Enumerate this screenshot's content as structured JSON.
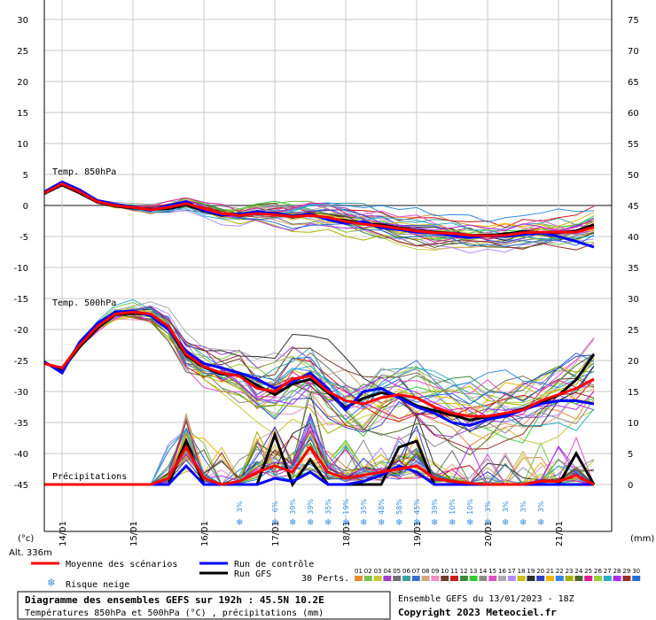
{
  "chart_data": {
    "type": "line",
    "title": "Diagramme des ensembles GEFS sur 192h : 45.5N 10.2E",
    "subtitle": "Températures 850hPa et 500hPa (°C) , précipitations (mm)",
    "left_axis": {
      "label": "(°c)",
      "min": -45,
      "max": 30,
      "ticks": [
        30,
        25,
        20,
        15,
        10,
        5,
        0,
        -5,
        -10,
        -15,
        -20,
        -25,
        -30,
        -35,
        -40,
        -45
      ]
    },
    "right_axis": {
      "label": "(mm)",
      "min": 0,
      "max": 75,
      "ticks": [
        75,
        70,
        65,
        60,
        55,
        50,
        45,
        40,
        35,
        30,
        25,
        20,
        15,
        10,
        5,
        0
      ]
    },
    "x_dates": [
      "14/01",
      "15/01",
      "16/01",
      "17/01",
      "18/01",
      "19/01",
      "20/01",
      "21/01"
    ],
    "x_steps": 32,
    "section_labels": {
      "t850": "Temp. 850hPa",
      "t500": "Temp. 500hPa",
      "precip": "Précipitations"
    },
    "altitude": "Alt. 336m",
    "series": [
      {
        "name": "Moyenne des scénarios",
        "color": "#ff0000",
        "width": 3,
        "t850": [
          2,
          3.5,
          2.2,
          0.6,
          0,
          -0.3,
          -0.7,
          -0.3,
          0.3,
          -0.5,
          -1.3,
          -1.6,
          -1.3,
          -1.5,
          -1.8,
          -1.6,
          -1.9,
          -2.6,
          -3,
          -3.3,
          -3.7,
          -4.1,
          -4.4,
          -4.5,
          -4.8,
          -4.9,
          -4.8,
          -4.4,
          -4.3,
          -4.3,
          -4.3,
          -3.5
        ],
        "t500": [
          -25.5,
          -26.2,
          -22.5,
          -19.5,
          -17.5,
          -17.2,
          -17.5,
          -19.5,
          -24,
          -26,
          -27,
          -27.5,
          -29.5,
          -30,
          -28,
          -27.5,
          -30,
          -31.5,
          -32,
          -31,
          -30.5,
          -31,
          -32.5,
          -33.5,
          -34,
          -34,
          -33.5,
          -33,
          -31.5,
          -30.5,
          -29.5,
          -28
        ],
        "precip": [
          0,
          0,
          0,
          0,
          0,
          0,
          0,
          1,
          6,
          1,
          0,
          0.5,
          2,
          3,
          2,
          6,
          2,
          1,
          1.5,
          2,
          2.5,
          3,
          1,
          0.5,
          0.2,
          0,
          0,
          0,
          0.5,
          0.5,
          1.5,
          0
        ]
      },
      {
        "name": "Run de contrôle",
        "color": "#0000ff",
        "width": 3,
        "t850": [
          2.2,
          3.8,
          2.5,
          0.8,
          0.2,
          -0.2,
          -0.8,
          0,
          0.6,
          -0.8,
          -1.5,
          -1.4,
          -1,
          -1.3,
          -1.7,
          -1.4,
          -2.3,
          -2.9,
          -2.6,
          -3.6,
          -3.9,
          -4.3,
          -4.4,
          -4.9,
          -5.2,
          -4.9,
          -5,
          -4.7,
          -4.4,
          -5,
          -5.8,
          -6.7
        ],
        "t500": [
          -25.2,
          -27,
          -22,
          -19,
          -17.2,
          -17,
          -17.8,
          -20,
          -23.5,
          -25.5,
          -26.2,
          -27,
          -28,
          -29.5,
          -28.5,
          -27,
          -29.5,
          -33,
          -30,
          -29.5,
          -31,
          -32.5,
          -33.5,
          -35,
          -35.5,
          -34.5,
          -34,
          -33,
          -32,
          -31.5,
          -31.5,
          -32
        ],
        "precip": [
          0,
          0,
          0,
          0,
          0,
          0,
          0,
          0,
          3,
          0,
          0,
          0,
          0,
          1,
          0.5,
          2,
          0,
          0,
          0.5,
          1.5,
          3,
          2,
          0,
          0,
          0,
          0,
          0,
          0,
          0,
          0,
          0,
          0
        ]
      },
      {
        "name": "Run GFS",
        "color": "#000000",
        "width": 3,
        "t850": [
          1.9,
          3.3,
          2,
          0.5,
          -0.1,
          -0.4,
          -0.6,
          -0.5,
          0.1,
          -0.9,
          -1.6,
          -1.3,
          -1.4,
          -1.2,
          -1.9,
          -1.5,
          -2.1,
          -2.4,
          -2.9,
          -3.1,
          -3.6,
          -4,
          -4.3,
          -4.5,
          -4.8,
          -4.8,
          -4.6,
          -4.2,
          -4.4,
          -4.4,
          -4.1,
          -3.1
        ],
        "t500": [
          -25.4,
          -26.5,
          -22.8,
          -19.8,
          -17.6,
          -17.4,
          -17.6,
          -19.9,
          -24.2,
          -26.1,
          -27.2,
          -27.4,
          -29,
          -30.5,
          -28.8,
          -28,
          -30.2,
          -32.6,
          -31.1,
          -30.2,
          -30.8,
          -32.3,
          -33.1,
          -33.8,
          -34.6,
          -34.1,
          -33.6,
          -32.8,
          -31.8,
          -30.6,
          -28.1,
          -24
        ],
        "precip": [
          0,
          0,
          0,
          0,
          0,
          0,
          0,
          0,
          7,
          0,
          0,
          0,
          0,
          8,
          0,
          4,
          0,
          0,
          0,
          0,
          6,
          7,
          0,
          0,
          0,
          0,
          0,
          0,
          0,
          0,
          5,
          0
        ]
      }
    ],
    "members_count": 30,
    "member_colors": [
      "#e58b3a",
      "#7cc04f",
      "#c9c936",
      "#9e3ecf",
      "#6f6f6f",
      "#3d9ea6",
      "#3a6fd1",
      "#d2a678",
      "#ee90c6",
      "#6f3f2d",
      "#cc1818",
      "#3b8a3b",
      "#32cc32",
      "#8b8b8b",
      "#e04fc8",
      "#aaaaaa",
      "#b38cff",
      "#cfbc16",
      "#2f2f2f",
      "#2f3fc4",
      "#f1b500",
      "#2e8be3",
      "#a8b000",
      "#4d6a2a",
      "#e31a96",
      "#9bcf3e",
      "#2bb0c7",
      "#ad2cf0",
      "#9a2c2c",
      "#1f6fcf"
    ],
    "member_numbers": [
      "01",
      "02",
      "03",
      "04",
      "05",
      "06",
      "07",
      "08",
      "09",
      "10",
      "11",
      "12",
      "13",
      "14",
      "15",
      "16",
      "17",
      "18",
      "19",
      "20",
      "21",
      "22",
      "23",
      "24",
      "25",
      "26",
      "27",
      "28",
      "29",
      "30"
    ],
    "snow_risk": [
      {
        "step": 10,
        "text": "3%"
      },
      {
        "step": 12,
        "text": "6%"
      },
      {
        "step": 13,
        "text": "39%"
      },
      {
        "step": 14,
        "text": "39%"
      },
      {
        "step": 15,
        "text": "35%"
      },
      {
        "step": 16,
        "text": "19%"
      },
      {
        "step": 17,
        "text": "35%"
      },
      {
        "step": 18,
        "text": "48%"
      },
      {
        "step": 19,
        "text": "58%"
      },
      {
        "step": 20,
        "text": "45%"
      },
      {
        "step": 21,
        "text": "39%"
      },
      {
        "step": 22,
        "text": "10%"
      },
      {
        "step": 23,
        "text": "10%"
      },
      {
        "step": 24,
        "text": "3%"
      },
      {
        "step": 25,
        "text": "3%"
      },
      {
        "step": 26,
        "text": "3%"
      },
      {
        "step": 27,
        "text": "3%"
      }
    ],
    "legend": {
      "mean": "Moyenne des scénarios",
      "control": "Run de contrôle",
      "gfs": "Run GFS",
      "perts": "30 Perts.",
      "snow": "Risque neige"
    },
    "footer": {
      "title": "Diagramme des ensembles GEFS sur 192h : 45.5N 10.2E",
      "subtitle": "Températures 850hPa et 500hPa (°C) , précipitations (mm)",
      "run": "Ensemble GEFS du 13/01/2023 - 18Z",
      "copyright": "Copyright 2023 Meteociel.fr"
    }
  }
}
